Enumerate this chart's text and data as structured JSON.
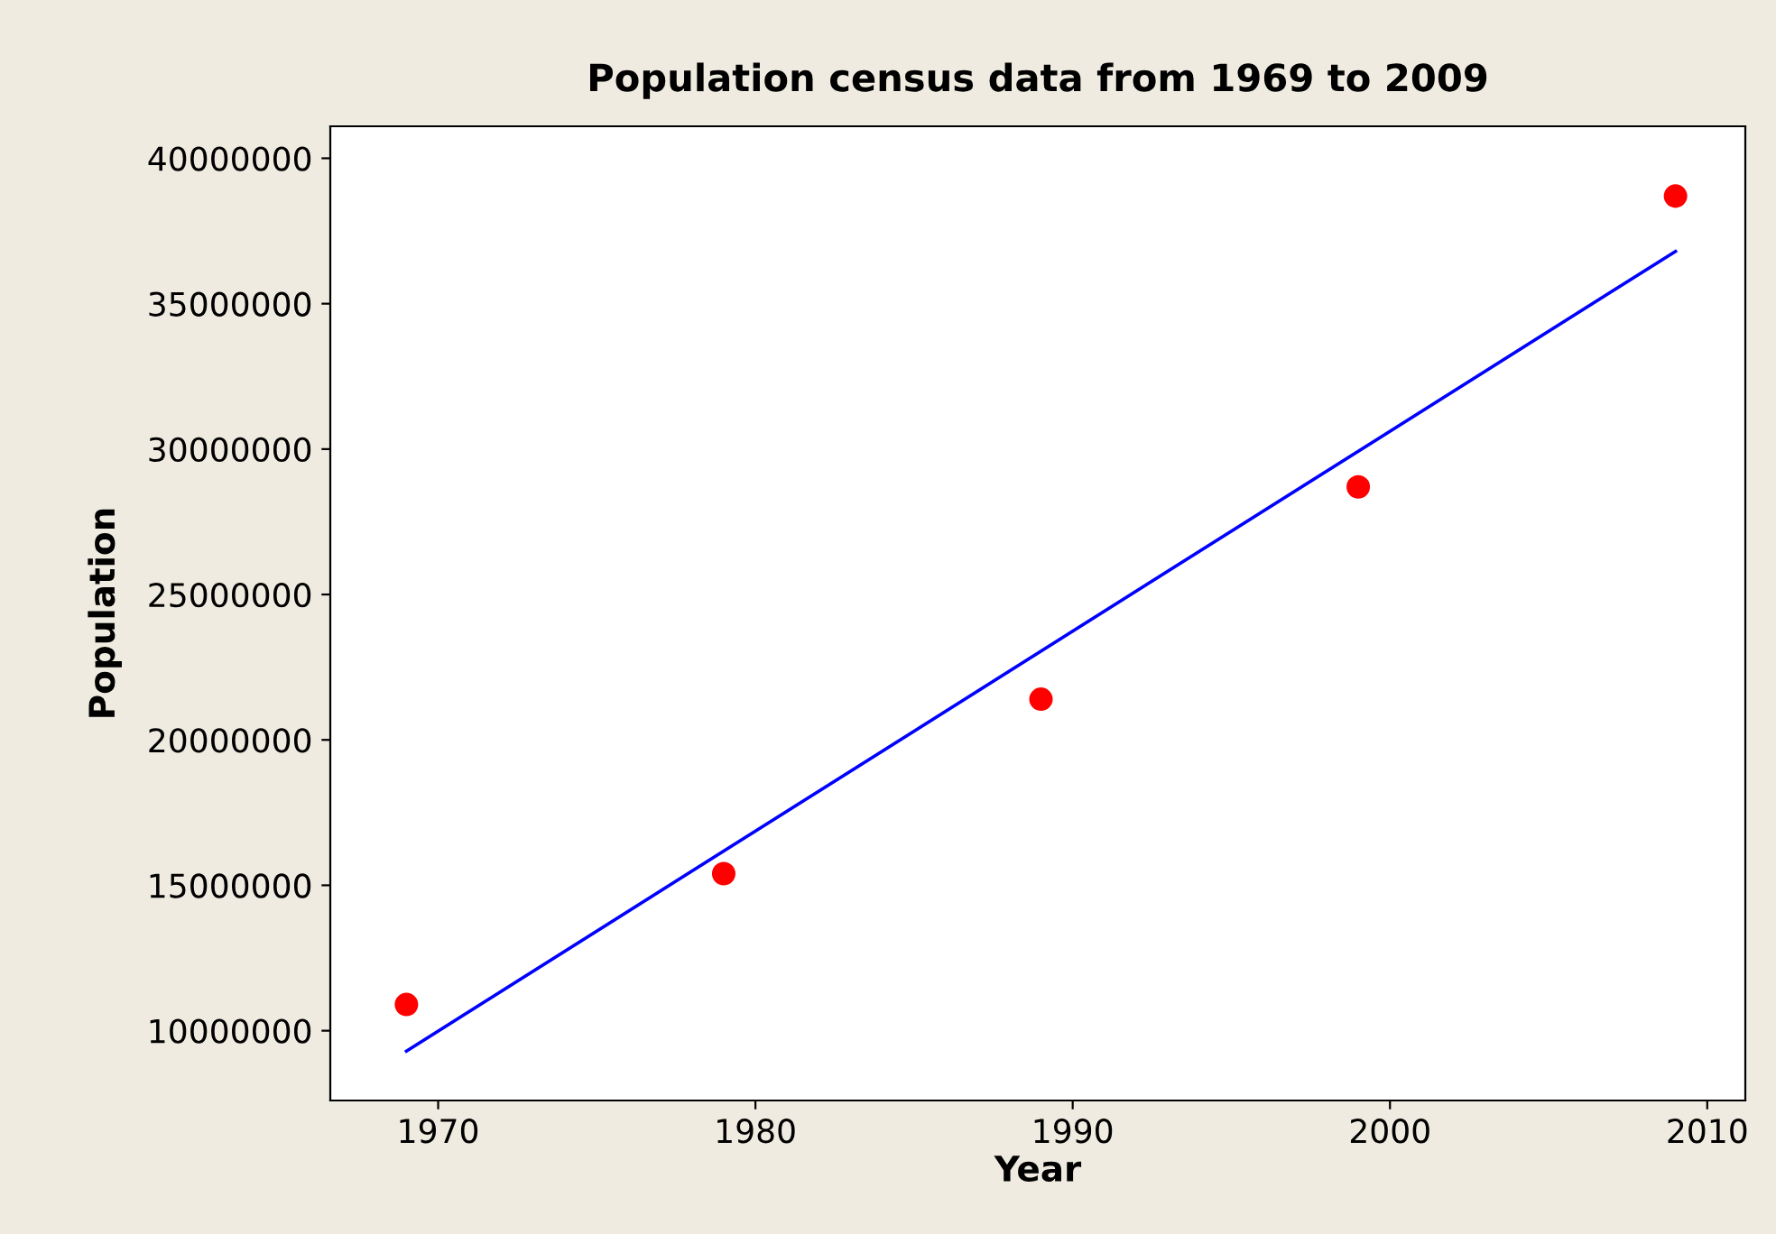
{
  "chart_data": {
    "type": "scatter",
    "title": "Population census data from 1969 to 2009",
    "xlabel": "Year",
    "ylabel": "Population",
    "x": [
      1969,
      1979,
      1989,
      1999,
      2009
    ],
    "series": [
      {
        "color": "#ff0000",
        "values": [
          10900000,
          15400000,
          21400000,
          28700000,
          38700000
        ],
        "marker": "circle"
      },
      {
        "type": "line",
        "color": "#0000ff",
        "x": [
          1969,
          2009
        ],
        "values": [
          9300000,
          36800000
        ],
        "marker": "none",
        "line_style": "solid"
      }
    ],
    "xlim": [
      1966.6,
      2011.2
    ],
    "ylim": [
      7600000,
      41100000
    ],
    "xticks": [
      1970,
      1980,
      1990,
      2000,
      2010
    ],
    "yticks": [
      10000000,
      15000000,
      20000000,
      25000000,
      30000000,
      35000000,
      40000000
    ],
    "grid": false,
    "legend": false
  }
}
